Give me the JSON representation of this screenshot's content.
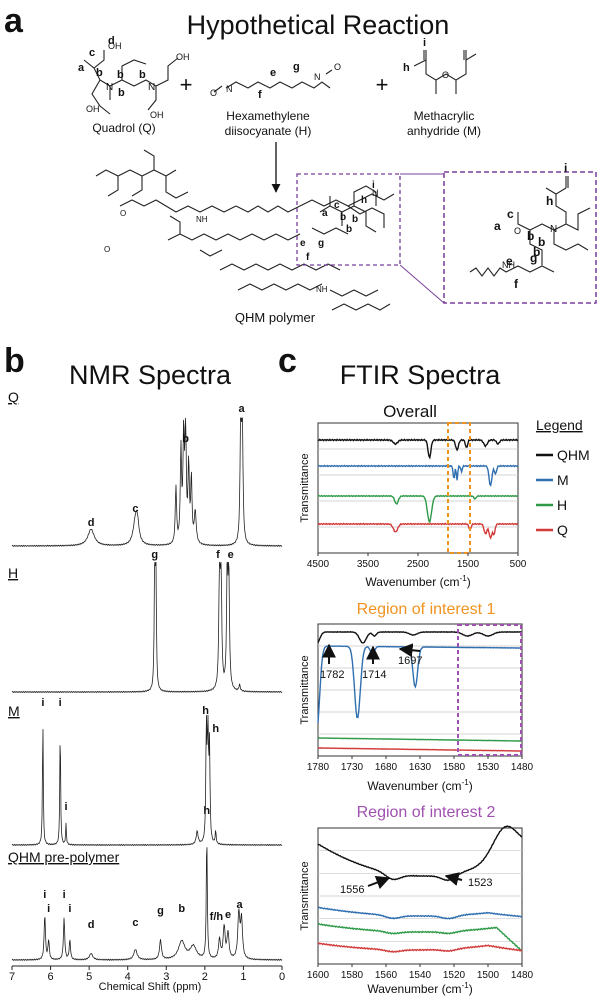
{
  "panel_a": {
    "letter": "a",
    "title": "Hypothetical Reaction",
    "reactants": [
      {
        "name_line1": "Quadrol (Q)"
      },
      {
        "name_line1": "Hexamethylene",
        "name_line2": "diisocyanate (H)"
      },
      {
        "name_line1": "Methacrylic",
        "name_line2": "anhydride (M)"
      }
    ],
    "plus": "+",
    "product_label": "QHM polymer",
    "atom_labels": {
      "a": "a",
      "b": "b",
      "c": "c",
      "d": "d",
      "e": "e",
      "f": "f",
      "g": "g",
      "h": "h",
      "i": "i"
    },
    "atoms": {
      "O": "O",
      "N": "N",
      "OH": "OH",
      "NH": "NH"
    }
  },
  "panel_b": {
    "letter": "b",
    "title": "NMR Spectra",
    "spectra": [
      {
        "name": "Q",
        "peaks": [
          {
            "label": "d",
            "ppm": 4.95
          },
          {
            "label": "c",
            "ppm": 3.8
          },
          {
            "label": "b",
            "ppm": 2.5
          },
          {
            "label": "a",
            "ppm": 1.05
          }
        ]
      },
      {
        "name": "H",
        "peaks": [
          {
            "label": "g",
            "ppm": 3.3
          },
          {
            "label": "f",
            "ppm": 1.6
          },
          {
            "label": "e",
            "ppm": 1.35
          }
        ]
      },
      {
        "name": "M",
        "peaks": [
          {
            "label": "i",
            "ppm": 6.2
          },
          {
            "label": "i",
            "ppm": 5.75
          },
          {
            "label": "i",
            "ppm": 5.6
          },
          {
            "label": "h",
            "ppm": 1.95
          },
          {
            "label": "h",
            "ppm": 1.9
          }
        ]
      },
      {
        "name": "QHM pre-polymer",
        "peaks": [
          {
            "label": "i",
            "ppm": 6.15
          },
          {
            "label": "i",
            "ppm": 6.05
          },
          {
            "label": "i",
            "ppm": 5.65
          },
          {
            "label": "i",
            "ppm": 5.5
          },
          {
            "label": "d",
            "ppm": 4.95
          },
          {
            "label": "c",
            "ppm": 3.8
          },
          {
            "label": "g",
            "ppm": 3.15
          },
          {
            "label": "b",
            "ppm": 2.6
          },
          {
            "label": "h",
            "ppm": 1.95
          },
          {
            "label": "f/h",
            "ppm": 1.6
          },
          {
            "label": "e",
            "ppm": 1.4
          },
          {
            "label": "a",
            "ppm": 1.1
          }
        ]
      }
    ],
    "x_ticks": [
      "7",
      "6",
      "5",
      "4",
      "3",
      "2",
      "1",
      "0"
    ],
    "xlabel": "Chemical Shift (ppm)"
  },
  "panel_c": {
    "letter": "c",
    "title": "FTIR Spectra",
    "legend": {
      "title": "Legend",
      "items": [
        {
          "name": "QHM",
          "color": "#111111"
        },
        {
          "name": "M",
          "color": "#2f6fb0"
        },
        {
          "name": "H",
          "color": "#2e9a48"
        },
        {
          "name": "Q",
          "color": "#d23a3a"
        }
      ]
    },
    "overall": {
      "title": "Overall",
      "ylabel": "Transmittance",
      "xlabel_main": "Wavenumber (cm",
      "xlabel_sup": "-1",
      "xlabel_end": ")",
      "x_ticks": [
        "4500",
        "3500",
        "2500",
        "1500",
        "500"
      ]
    },
    "roi1": {
      "title": "Region of interest 1",
      "ylabel": "Transmittance",
      "xlabel_main": "Wavenumber (cm",
      "xlabel_sup": "-1",
      "xlabel_end": ")",
      "x_ticks": [
        "1780",
        "1730",
        "1680",
        "1630",
        "1580",
        "1530",
        "1480"
      ],
      "annotations": [
        "1782",
        "1714",
        "1697"
      ],
      "title_color": "#f0921e"
    },
    "roi2": {
      "title": "Region of interest 2",
      "ylabel": "Transmittance",
      "xlabel_main": "Wavenumber (cm",
      "xlabel_sup": "-1",
      "xlabel_end": ")",
      "x_ticks": [
        "1600",
        "1580",
        "1560",
        "1540",
        "1520",
        "1500",
        "1480"
      ],
      "annotations": [
        "1556",
        "1523"
      ],
      "title_color": "#a050b0"
    }
  },
  "chart_data": [
    {
      "type": "line",
      "title": "NMR Spectra",
      "xlabel": "Chemical Shift (ppm)",
      "ylabel": "",
      "xlim": [
        7,
        0
      ],
      "series": [
        {
          "name": "Q"
        },
        {
          "name": "H"
        },
        {
          "name": "M"
        },
        {
          "name": "QHM pre-polymer"
        }
      ]
    },
    {
      "type": "line",
      "title": "Overall",
      "xlabel": "Wavenumber (cm-1)",
      "ylabel": "Transmittance",
      "xlim": [
        4500,
        500
      ],
      "series": [
        {
          "name": "QHM"
        },
        {
          "name": "M"
        },
        {
          "name": "H"
        },
        {
          "name": "Q"
        }
      ]
    },
    {
      "type": "line",
      "title": "Region of interest 1",
      "xlabel": "Wavenumber (cm-1)",
      "ylabel": "Transmittance",
      "xlim": [
        1780,
        1480
      ],
      "annotations": [
        1782,
        1714,
        1697
      ],
      "series": [
        {
          "name": "QHM"
        },
        {
          "name": "M"
        },
        {
          "name": "H"
        },
        {
          "name": "Q"
        }
      ]
    },
    {
      "type": "line",
      "title": "Region of interest 2",
      "xlabel": "Wavenumber (cm-1)",
      "ylabel": "Transmittance",
      "xlim": [
        1600,
        1480
      ],
      "annotations": [
        1556,
        1523
      ],
      "series": [
        {
          "name": "QHM"
        },
        {
          "name": "M"
        },
        {
          "name": "H"
        },
        {
          "name": "Q"
        }
      ]
    }
  ]
}
